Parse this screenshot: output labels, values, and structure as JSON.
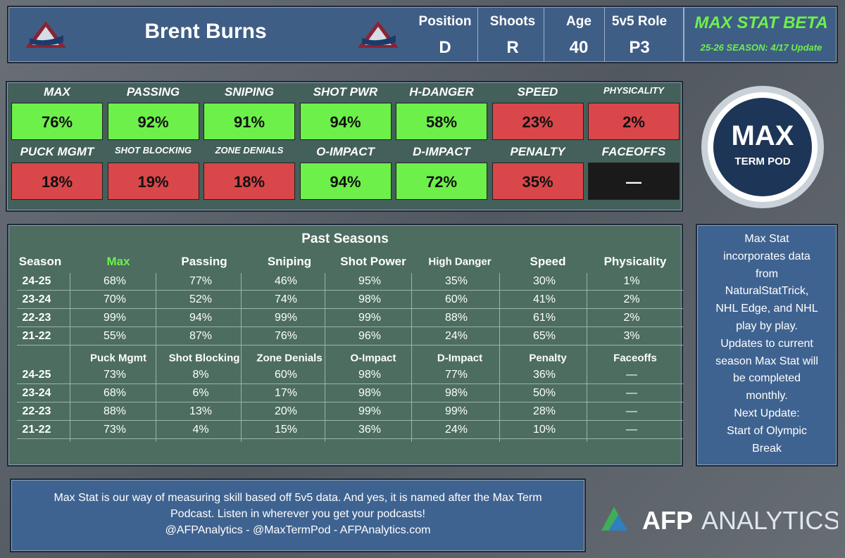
{
  "header": {
    "name": "Brent Burns",
    "info": [
      {
        "label": "Position",
        "value": "D"
      },
      {
        "label": "Shoots",
        "value": "R"
      },
      {
        "label": "Age",
        "value": "40"
      },
      {
        "label": "5v5 Role",
        "value": "P3"
      }
    ],
    "brand": "MAX STAT BETA",
    "update": "25-26 SEASON: 4/17 Update"
  },
  "tiles": {
    "rows": [
      [
        {
          "label": "MAX",
          "value": "76%",
          "color": "#6df04a"
        },
        {
          "label": "PASSING",
          "value": "92%",
          "color": "#6df04a"
        },
        {
          "label": "SNIPING",
          "value": "91%",
          "color": "#6df04a"
        },
        {
          "label": "SHOT PWR",
          "value": "94%",
          "color": "#6df04a"
        },
        {
          "label": "H-DANGER",
          "value": "58%",
          "color": "#6df04a"
        },
        {
          "label": "SPEED",
          "value": "23%",
          "color": "#d9474a"
        },
        {
          "label": "PHYSICALITY",
          "value": "2%",
          "color": "#d9474a"
        }
      ],
      [
        {
          "label": "PUCK MGMT",
          "value": "18%",
          "color": "#d9474a"
        },
        {
          "label": "SHOT BLOCKING",
          "value": "19%",
          "color": "#d9474a"
        },
        {
          "label": "ZONE DENIALS",
          "value": "18%",
          "color": "#d9474a"
        },
        {
          "label": "O-IMPACT",
          "value": "94%",
          "color": "#6df04a"
        },
        {
          "label": "D-IMPACT",
          "value": "72%",
          "color": "#6df04a"
        },
        {
          "label": "PENALTY",
          "value": "35%",
          "color": "#d9474a"
        },
        {
          "label": "FACEOFFS",
          "value": "—",
          "color": "#1a1a1a"
        }
      ]
    ]
  },
  "logo": {
    "top": "MAX",
    "bottom": "TERM POD"
  },
  "past": {
    "title": "Past Seasons",
    "table1": {
      "header": [
        "Season",
        "Max",
        "Passing",
        "Sniping",
        "Shot Power",
        "High Danger",
        "Speed",
        "Physicality"
      ],
      "rows": [
        [
          "24-25",
          "68%",
          "77%",
          "46%",
          "95%",
          "35%",
          "30%",
          "1%"
        ],
        [
          "23-24",
          "70%",
          "52%",
          "74%",
          "98%",
          "60%",
          "41%",
          "2%"
        ],
        [
          "22-23",
          "99%",
          "94%",
          "99%",
          "99%",
          "88%",
          "61%",
          "2%"
        ],
        [
          "21-22",
          "55%",
          "87%",
          "76%",
          "96%",
          "24%",
          "65%",
          "3%"
        ]
      ]
    },
    "table2": {
      "header": [
        "Puck Mgmt",
        "Shot Blocking",
        "Zone Denials",
        "O-Impact",
        "D-Impact",
        "Penalty",
        "Faceoffs"
      ],
      "rows": [
        [
          "24-25",
          "73%",
          "8%",
          "60%",
          "98%",
          "77%",
          "36%",
          "—"
        ],
        [
          "23-24",
          "68%",
          "6%",
          "17%",
          "98%",
          "98%",
          "50%",
          "—"
        ],
        [
          "22-23",
          "88%",
          "13%",
          "20%",
          "99%",
          "99%",
          "28%",
          "—"
        ],
        [
          "21-22",
          "73%",
          "4%",
          "15%",
          "36%",
          "24%",
          "10%",
          "—"
        ]
      ]
    }
  },
  "note": {
    "lines": [
      "Max Stat",
      "incorporates data",
      "from",
      "NaturalStatTrick,",
      "NHL Edge, and NHL",
      "play by play.",
      "Updates to current",
      "season Max Stat will",
      "be completed",
      "monthly.",
      "Next Update:",
      "Start of Olympic",
      "Break"
    ]
  },
  "footer": {
    "lines": [
      "Max Stat is our way of measuring skill based off 5v5 data. And yes, it is named after the Max Term",
      "Podcast. Listen in wherever you get your podcasts!",
      "@AFPAnalytics - @MaxTermPod - AFPAnalytics.com"
    ]
  },
  "afp": {
    "bold": "AFP",
    "light": "ANALYTICS"
  }
}
